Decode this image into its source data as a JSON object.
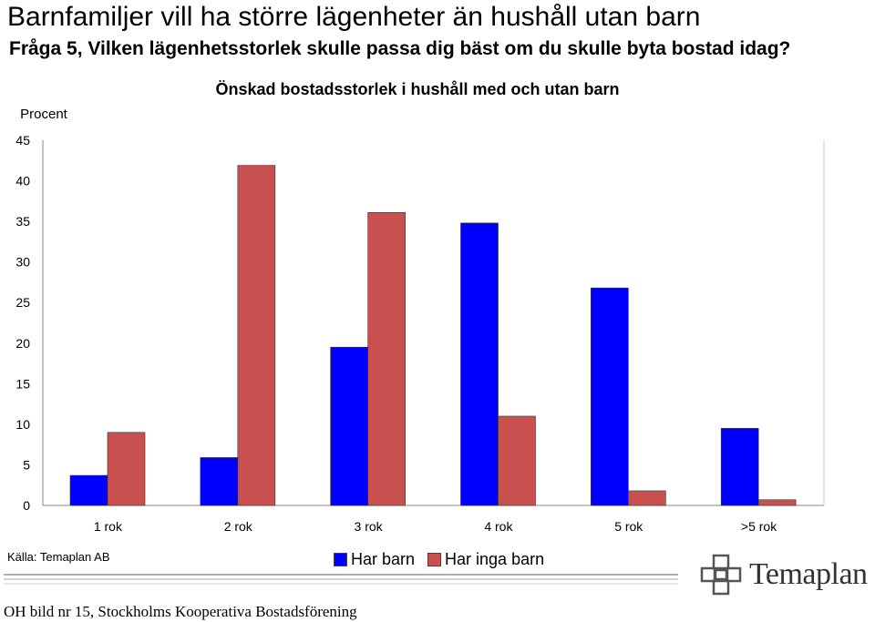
{
  "header": {
    "title": "Barnfamiljer vill ha större lägenheter än hushåll utan barn",
    "subtitle": "Fråga 5, Vilken lägenhetsstorlek skulle passa dig bäst om du skulle byta bostad idag?"
  },
  "chart_data": {
    "type": "bar",
    "title": "Önskad bostadsstorlek i hushåll med och utan barn",
    "ylabel": "Procent",
    "xlabel": "",
    "ylim": [
      0,
      45
    ],
    "yticks": [
      0,
      5,
      10,
      15,
      20,
      25,
      30,
      35,
      40,
      45
    ],
    "categories": [
      "1 rok",
      "2 rok",
      "3 rok",
      "4 rok",
      "5 rok",
      ">5 rok"
    ],
    "series": [
      {
        "name": "Har barn",
        "color": "#0000FF",
        "values": [
          3.7,
          5.9,
          19.5,
          34.8,
          26.8,
          9.5
        ]
      },
      {
        "name": "Har inga barn",
        "color": "#C8504F",
        "values": [
          9.0,
          41.9,
          36.1,
          11.0,
          1.8,
          0.7
        ]
      }
    ],
    "grid": false,
    "legend_position": "bottom"
  },
  "footer": {
    "source": "Källa: Temaplan AB",
    "caption": "OH bild nr 15, Stockholms Kooperativa Bostadsförening",
    "logo_text": "Temaplan",
    "line_colors": [
      "#b0b0b0",
      "#d0d0d0",
      "#e6e6e6"
    ]
  }
}
